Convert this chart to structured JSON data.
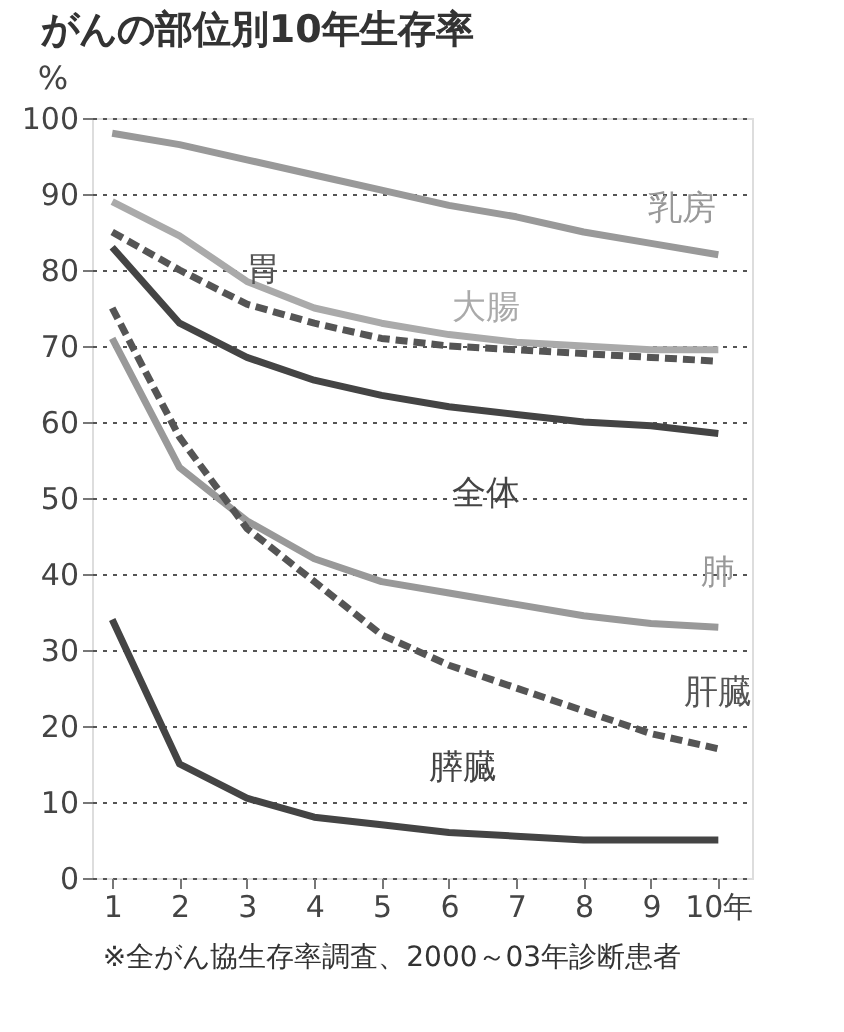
{
  "chart_data": {
    "type": "line",
    "title": "がんの部位別10年生存率",
    "ylabel": "%",
    "x": [
      1,
      2,
      3,
      4,
      5,
      6,
      7,
      8,
      9,
      10
    ],
    "xlim": [
      0.7,
      10.5
    ],
    "xticks": [
      1,
      2,
      3,
      4,
      5,
      6,
      7,
      8,
      9,
      {
        "value": 10,
        "label": "10年"
      }
    ],
    "ylim": [
      0,
      100
    ],
    "yticks": [
      0,
      10,
      20,
      30,
      40,
      50,
      60,
      70,
      80,
      90,
      100
    ],
    "grid": "y",
    "series": [
      {
        "name": "乳房",
        "color": "#999999",
        "line_style": "solid",
        "values": [
          98,
          96.5,
          94.5,
          92.5,
          90.5,
          88.5,
          87,
          85,
          83.5,
          82
        ]
      },
      {
        "name": "大腸",
        "color": "#aaaaaa",
        "line_style": "solid",
        "values": [
          89,
          84.5,
          78.5,
          75,
          73,
          71.5,
          70.5,
          70,
          69.5,
          69.5
        ]
      },
      {
        "name": "胃",
        "color": "#555555",
        "line_style": "dashed",
        "values": [
          85,
          80,
          75.5,
          73,
          71,
          70,
          69.5,
          69,
          68.5,
          68
        ]
      },
      {
        "name": "全体",
        "color": "#444444",
        "line_style": "solid",
        "values": [
          83,
          73,
          68.5,
          65.5,
          63.5,
          62,
          61,
          60,
          59.5,
          58.5
        ]
      },
      {
        "name": "肺",
        "color": "#999999",
        "line_style": "solid",
        "values": [
          71,
          54,
          47,
          42,
          39,
          37.5,
          36,
          34.5,
          33.5,
          33
        ]
      },
      {
        "name": "肝臓",
        "color": "#555555",
        "line_style": "dashed",
        "values": [
          75,
          58,
          46,
          39,
          32,
          28,
          25,
          22,
          19,
          17
        ]
      },
      {
        "name": "膵臓",
        "color": "#444444",
        "line_style": "solid",
        "values": [
          34,
          15,
          10.5,
          8,
          7,
          6,
          5.5,
          5,
          5,
          5
        ]
      }
    ],
    "annotations": [
      "※全がん協生存率調査、2000～03年診断患者"
    ]
  }
}
